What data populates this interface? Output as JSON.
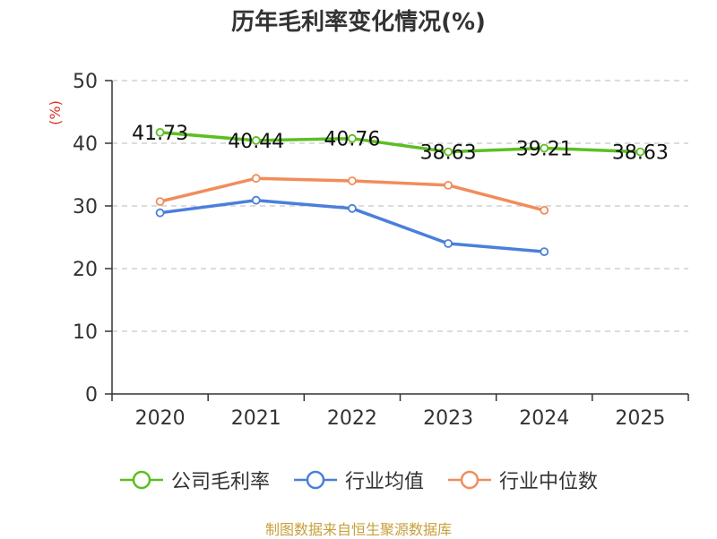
{
  "chart_data": {
    "type": "line",
    "title": "历年毛利率变化情况(%)",
    "ylabel": "(%)",
    "xlabel": "",
    "categories": [
      "2020",
      "2021",
      "2022",
      "2023",
      "2024",
      "2025"
    ],
    "ylim": [
      0,
      50
    ],
    "yticks": [
      0,
      10,
      20,
      30,
      40,
      50
    ],
    "grid": true,
    "legend_position": "bottom",
    "series": [
      {
        "name": "公司毛利率",
        "color": "#5bbf21",
        "values": [
          41.73,
          40.44,
          40.76,
          38.63,
          39.21,
          38.63
        ],
        "labels": [
          "41.73",
          "40.44",
          "40.76",
          "38.63",
          "39.21",
          "38.63"
        ]
      },
      {
        "name": "行业均值",
        "color": "#4a7fdc",
        "values": [
          28.9,
          30.9,
          29.6,
          24.0,
          22.7,
          null
        ]
      },
      {
        "name": "行业中位数",
        "color": "#f28c5a",
        "values": [
          30.7,
          34.4,
          34.0,
          33.3,
          29.3,
          null
        ]
      }
    ]
  },
  "footer": {
    "source": "制图数据来自恒生聚源数据库"
  }
}
